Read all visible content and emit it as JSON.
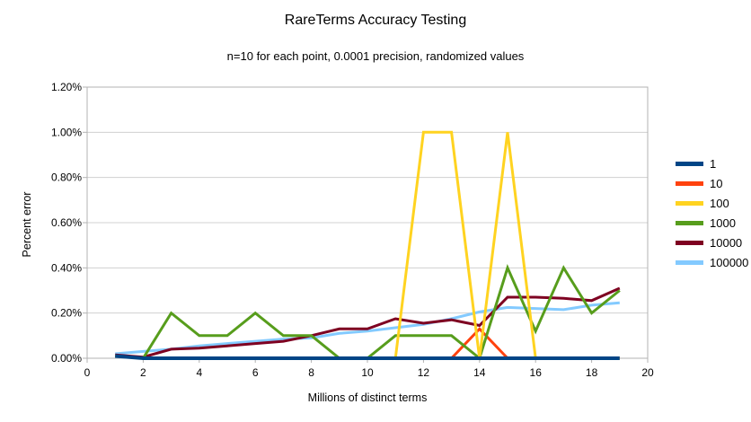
{
  "chart_data": {
    "type": "line",
    "title": "RareTerms Accuracy Testing",
    "subtitle": "n=10 for each point, 0.0001 precision, randomized values",
    "xlabel": "Millions of distinct terms",
    "ylabel": "Percent error",
    "xlim": [
      0,
      20
    ],
    "ylim": [
      0,
      1.2
    ],
    "y_unit": "percent",
    "grid": "horizontal",
    "legend_position": "right",
    "x_ticks": [
      0,
      2,
      4,
      6,
      8,
      10,
      12,
      14,
      16,
      18,
      20
    ],
    "y_ticks": [
      {
        "value": 0.0,
        "label": "0.00%"
      },
      {
        "value": 0.2,
        "label": "0.20%"
      },
      {
        "value": 0.4,
        "label": "0.40%"
      },
      {
        "value": 0.6,
        "label": "0.60%"
      },
      {
        "value": 0.8,
        "label": "0.80%"
      },
      {
        "value": 1.0,
        "label": "1.00%"
      },
      {
        "value": 1.2,
        "label": "1.20%"
      }
    ],
    "x": [
      1,
      2,
      3,
      4,
      5,
      6,
      7,
      8,
      9,
      10,
      11,
      12,
      13,
      14,
      15,
      16,
      17,
      18,
      19
    ],
    "series": [
      {
        "name": "1",
        "color": "#004586",
        "stroke_width": 4,
        "values": [
          0.01,
          0,
          0,
          0,
          0,
          0,
          0,
          0,
          0,
          0,
          0,
          0,
          0,
          0,
          0,
          0,
          0,
          0,
          0
        ]
      },
      {
        "name": "10",
        "color": "#ff420e",
        "stroke_width": 3,
        "values": [
          0.01,
          0,
          0,
          0,
          0,
          0,
          0,
          0,
          0,
          0,
          0,
          0,
          0,
          0.13,
          0,
          0,
          0,
          0,
          0
        ]
      },
      {
        "name": "100",
        "color": "#ffd320",
        "stroke_width": 3,
        "values": [
          0.01,
          0,
          0,
          0,
          0,
          0,
          0,
          0,
          0,
          0,
          0,
          1.0,
          1.0,
          0,
          1.0,
          0,
          0,
          0,
          0
        ]
      },
      {
        "name": "1000",
        "color": "#579d1c",
        "stroke_width": 3,
        "values": [
          0.01,
          0,
          0.2,
          0.1,
          0.1,
          0.2,
          0.1,
          0.1,
          0,
          0,
          0.1,
          0.1,
          0.1,
          0,
          0.4,
          0.12,
          0.4,
          0.2,
          0.3
        ]
      },
      {
        "name": "10000",
        "color": "#7e0021",
        "stroke_width": 3,
        "values": [
          0.015,
          0.005,
          0.04,
          0.045,
          0.055,
          0.065,
          0.075,
          0.1,
          0.13,
          0.13,
          0.175,
          0.155,
          0.17,
          0.145,
          0.27,
          0.27,
          0.265,
          0.255,
          0.31
        ]
      },
      {
        "name": "100000",
        "color": "#83caff",
        "stroke_width": 3,
        "values": [
          0.02,
          0.03,
          0.04,
          0.055,
          0.065,
          0.075,
          0.085,
          0.09,
          0.11,
          0.12,
          0.135,
          0.15,
          0.175,
          0.205,
          0.225,
          0.22,
          0.215,
          0.235,
          0.245
        ]
      }
    ],
    "draw_order": [
      "100000",
      "10000",
      "10",
      "1000",
      "100",
      "1"
    ]
  },
  "colors": {
    "background": "#ffffff",
    "plot_border": "#b3b3b3",
    "gridline": "#d0d0d0",
    "tick": "#b3b3b3",
    "text": "#000000"
  }
}
